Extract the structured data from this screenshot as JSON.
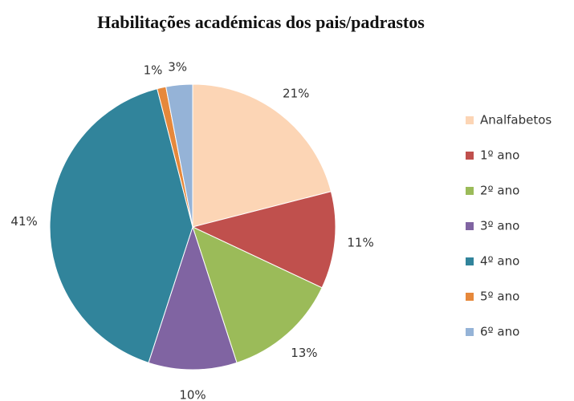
{
  "chart_data": {
    "type": "pie",
    "title": "Habilitações académicas dos pais/padrastos",
    "categories": [
      "Analfabetos",
      "1º ano",
      "2º ano",
      "3º ano",
      "4º ano",
      "5º ano",
      "6º ano"
    ],
    "values": [
      21,
      11,
      13,
      10,
      41,
      1,
      3
    ],
    "value_labels": [
      "21%",
      "11%",
      "13%",
      "10%",
      "41%",
      "1%",
      "3%"
    ],
    "colors": [
      "#fcd5b5",
      "#c0504d",
      "#9bbb59",
      "#8064a2",
      "#31849b",
      "#e6883b",
      "#95b3d7"
    ],
    "legend": "right"
  }
}
